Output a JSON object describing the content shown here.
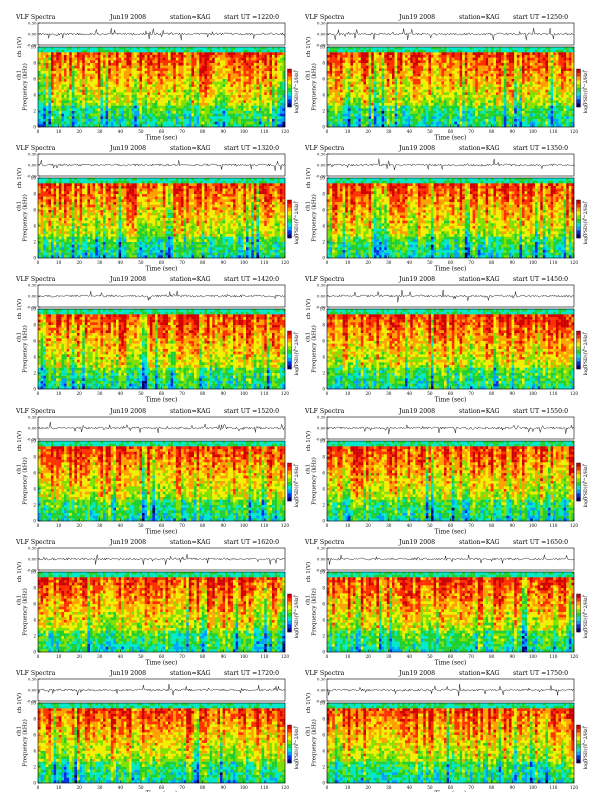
{
  "chart_data": [
    {
      "type": "heatmap",
      "title_left": "VLF Spectra",
      "date": "Jun19 2008",
      "station": "station=KAG",
      "start_ut": "start UT =1220:0",
      "xlabel": "Time (sec)",
      "ylabel_top": "ch 1(V)",
      "ylabel_main": "Frequency (kHz)",
      "channel": "ch1",
      "colorbar_label": "log(PSD)(V^2/Hz)",
      "xlim": [
        0,
        120
      ],
      "ylim": [
        0,
        10
      ],
      "top_ylim": [
        -0.3,
        0.3
      ],
      "x_ticks": [
        "0",
        "10",
        "20",
        "30",
        "40",
        "50",
        "60",
        "70",
        "80",
        "90",
        "100",
        "110",
        "120"
      ],
      "y_ticks": [
        "0",
        "2",
        "4",
        "6",
        "8",
        "10"
      ],
      "top_ticks": [
        "0.30",
        "0.00",
        "-0.30"
      ],
      "colorbar_ticks": [
        "-5",
        "-6",
        "-7"
      ]
    },
    {
      "type": "heatmap",
      "title_left": "VLF Spectra",
      "date": "Jun19 2008",
      "station": "station=KAG",
      "start_ut": "start UT =1250:0",
      "xlabel": "Time (sec)",
      "ylabel_top": "ch 1(V)",
      "ylabel_main": "Frequency (kHz)",
      "channel": "ch1",
      "colorbar_label": "log(PSD)(V^2/Hz)",
      "xlim": [
        0,
        120
      ],
      "ylim": [
        0,
        10
      ],
      "top_ylim": [
        -0.3,
        0.3
      ],
      "x_ticks": [
        "0",
        "10",
        "20",
        "30",
        "40",
        "50",
        "60",
        "70",
        "80",
        "90",
        "100",
        "110",
        "120"
      ],
      "y_ticks": [
        "0",
        "2",
        "4",
        "6",
        "8",
        "10"
      ],
      "top_ticks": [
        "0.30",
        "0.00",
        "-0.30"
      ],
      "colorbar_ticks": [
        "-5",
        "-6",
        "-7"
      ]
    },
    {
      "type": "heatmap",
      "title_left": "VLF Spectra",
      "date": "Jun19 2008",
      "station": "station=KAG",
      "start_ut": "start UT =1320:0",
      "xlabel": "Time (sec)",
      "ylabel_top": "ch 1(V)",
      "ylabel_main": "Frequency (kHz)",
      "channel": "ch1",
      "colorbar_label": "log(PSD)(V^2/Hz)",
      "xlim": [
        0,
        120
      ],
      "ylim": [
        0,
        10
      ],
      "top_ylim": [
        -0.3,
        0.3
      ],
      "x_ticks": [
        "0",
        "10",
        "20",
        "30",
        "40",
        "50",
        "60",
        "70",
        "80",
        "90",
        "100",
        "110",
        "120"
      ],
      "y_ticks": [
        "0",
        "2",
        "4",
        "6",
        "8",
        "10"
      ],
      "top_ticks": [
        "0.30",
        "0.00",
        "-0.30"
      ],
      "colorbar_ticks": [
        "-5",
        "-6",
        "-7"
      ]
    },
    {
      "type": "heatmap",
      "title_left": "VLF Spectra",
      "date": "Jun19 2008",
      "station": "station=KAG",
      "start_ut": "start UT =1350:0",
      "xlabel": "Time (sec)",
      "ylabel_top": "ch 1(V)",
      "ylabel_main": "Frequency (kHz)",
      "channel": "ch1",
      "colorbar_label": "log(PSD)(V^2/Hz)",
      "xlim": [
        0,
        120
      ],
      "ylim": [
        0,
        10
      ],
      "top_ylim": [
        -0.3,
        0.3
      ],
      "x_ticks": [
        "0",
        "10",
        "20",
        "30",
        "40",
        "50",
        "60",
        "70",
        "80",
        "90",
        "100",
        "110",
        "120"
      ],
      "y_ticks": [
        "0",
        "2",
        "4",
        "6",
        "8",
        "10"
      ],
      "top_ticks": [
        "0.30",
        "0.00",
        "-0.30"
      ],
      "colorbar_ticks": [
        "-5",
        "-6",
        "-7"
      ]
    },
    {
      "type": "heatmap",
      "title_left": "VLF Spectra",
      "date": "Jun19 2008",
      "station": "station=KAG",
      "start_ut": "start UT =1420:0",
      "xlabel": "Time (sec)",
      "ylabel_top": "ch 1(V)",
      "ylabel_main": "Frequency (kHz)",
      "channel": "ch1",
      "colorbar_label": "log(PSD)(V^2/Hz)",
      "xlim": [
        0,
        120
      ],
      "ylim": [
        0,
        10
      ],
      "top_ylim": [
        -0.3,
        0.3
      ],
      "x_ticks": [
        "0",
        "10",
        "20",
        "30",
        "40",
        "50",
        "60",
        "70",
        "80",
        "90",
        "100",
        "110",
        "120"
      ],
      "y_ticks": [
        "0",
        "2",
        "4",
        "6",
        "8",
        "10"
      ],
      "top_ticks": [
        "0.30",
        "0.00",
        "-0.30"
      ],
      "colorbar_ticks": [
        "-5",
        "-6",
        "-7"
      ]
    },
    {
      "type": "heatmap",
      "title_left": "VLF Spectra",
      "date": "Jun19 2008",
      "station": "station=KAG",
      "start_ut": "start UT =1450:0",
      "xlabel": "Time (sec)",
      "ylabel_top": "ch 1(V)",
      "ylabel_main": "Frequency (kHz)",
      "channel": "ch1",
      "colorbar_label": "log(PSD)(V^2/Hz)",
      "xlim": [
        0,
        120
      ],
      "ylim": [
        0,
        10
      ],
      "top_ylim": [
        -0.3,
        0.3
      ],
      "x_ticks": [
        "0",
        "10",
        "20",
        "30",
        "40",
        "50",
        "60",
        "70",
        "80",
        "90",
        "100",
        "110",
        "120"
      ],
      "y_ticks": [
        "0",
        "2",
        "4",
        "6",
        "8",
        "10"
      ],
      "top_ticks": [
        "0.30",
        "0.00",
        "-0.30"
      ],
      "colorbar_ticks": [
        "-5",
        "-6",
        "-7"
      ]
    },
    {
      "type": "heatmap",
      "title_left": "VLF Spectra",
      "date": "Jun19 2008",
      "station": "station=KAG",
      "start_ut": "start UT =1520:0",
      "xlabel": "Time (sec)",
      "ylabel_top": "ch 1(V)",
      "ylabel_main": "Frequency (kHz)",
      "channel": "ch1",
      "colorbar_label": "log(PSD)(V^2/Hz)",
      "xlim": [
        0,
        120
      ],
      "ylim": [
        0,
        10
      ],
      "top_ylim": [
        -0.3,
        0.3
      ],
      "x_ticks": [
        "0",
        "10",
        "20",
        "30",
        "40",
        "50",
        "60",
        "70",
        "80",
        "90",
        "100",
        "110",
        "120"
      ],
      "y_ticks": [
        "0",
        "2",
        "4",
        "6",
        "8",
        "10"
      ],
      "top_ticks": [
        "0.30",
        "0.00",
        "-0.30"
      ],
      "colorbar_ticks": [
        "-5",
        "-6",
        "-7"
      ]
    },
    {
      "type": "heatmap",
      "title_left": "VLF Spectra",
      "date": "Jun19 2008",
      "station": "station=KAG",
      "start_ut": "start UT =1550:0",
      "xlabel": "Time (sec)",
      "ylabel_top": "ch 1(V)",
      "ylabel_main": "Frequency (kHz)",
      "channel": "ch1",
      "colorbar_label": "log(PSD)(V^2/Hz)",
      "xlim": [
        0,
        120
      ],
      "ylim": [
        0,
        10
      ],
      "top_ylim": [
        -0.3,
        0.3
      ],
      "x_ticks": [
        "0",
        "10",
        "20",
        "30",
        "40",
        "50",
        "60",
        "70",
        "80",
        "90",
        "100",
        "110",
        "120"
      ],
      "y_ticks": [
        "0",
        "2",
        "4",
        "6",
        "8",
        "10"
      ],
      "top_ticks": [
        "0.30",
        "0.00",
        "-0.30"
      ],
      "colorbar_ticks": [
        "-5",
        "-6",
        "-7"
      ]
    },
    {
      "type": "heatmap",
      "title_left": "VLF Spectra",
      "date": "Jun19 2008",
      "station": "station=KAG",
      "start_ut": "start UT =1620:0",
      "xlabel": "Time (sec)",
      "ylabel_top": "ch 1(V)",
      "ylabel_main": "Frequency (kHz)",
      "channel": "ch1",
      "colorbar_label": "log(PSD)(V^2/Hz)",
      "xlim": [
        0,
        120
      ],
      "ylim": [
        0,
        10
      ],
      "top_ylim": [
        -0.3,
        0.3
      ],
      "x_ticks": [
        "0",
        "10",
        "20",
        "30",
        "40",
        "50",
        "60",
        "70",
        "80",
        "90",
        "100",
        "110",
        "120"
      ],
      "y_ticks": [
        "0",
        "2",
        "4",
        "6",
        "8",
        "10"
      ],
      "top_ticks": [
        "0.30",
        "0.00",
        "-0.30"
      ],
      "colorbar_ticks": [
        "-5",
        "-6",
        "-7"
      ]
    },
    {
      "type": "heatmap",
      "title_left": "VLF Spectra",
      "date": "Jun19 2008",
      "station": "station=KAG",
      "start_ut": "start UT =1650:0",
      "xlabel": "Time (sec)",
      "ylabel_top": "ch 1(V)",
      "ylabel_main": "Frequency (kHz)",
      "channel": "ch1",
      "colorbar_label": "log(PSD)(V^2/Hz)",
      "xlim": [
        0,
        120
      ],
      "ylim": [
        0,
        10
      ],
      "top_ylim": [
        -0.3,
        0.3
      ],
      "x_ticks": [
        "0",
        "10",
        "20",
        "30",
        "40",
        "50",
        "60",
        "70",
        "80",
        "90",
        "100",
        "110",
        "120"
      ],
      "y_ticks": [
        "0",
        "2",
        "4",
        "6",
        "8",
        "10"
      ],
      "top_ticks": [
        "0.30",
        "0.00",
        "-0.30"
      ],
      "colorbar_ticks": [
        "-5",
        "-6",
        "-7"
      ]
    },
    {
      "type": "heatmap",
      "title_left": "VLF Spectra",
      "date": "Jun19 2008",
      "station": "station=KAG",
      "start_ut": "start UT =1720:0",
      "xlabel": "Time (sec)",
      "ylabel_top": "ch 1(V)",
      "ylabel_main": "Frequency (kHz)",
      "channel": "ch1",
      "colorbar_label": "log(PSD)(V^2/Hz)",
      "xlim": [
        0,
        120
      ],
      "ylim": [
        0,
        10
      ],
      "top_ylim": [
        -0.3,
        0.3
      ],
      "x_ticks": [
        "0",
        "10",
        "20",
        "30",
        "40",
        "50",
        "60",
        "70",
        "80",
        "90",
        "100",
        "110",
        "120"
      ],
      "y_ticks": [
        "0",
        "2",
        "4",
        "6",
        "8",
        "10"
      ],
      "top_ticks": [
        "0.30",
        "0.00",
        "-0.30"
      ],
      "colorbar_ticks": [
        "-5",
        "-6",
        "-7"
      ]
    },
    {
      "type": "heatmap",
      "title_left": "VLF Spectra",
      "date": "Jun19 2008",
      "station": "station=KAG",
      "start_ut": "start UT =1750:0",
      "xlabel": "Time (sec)",
      "ylabel_top": "ch 1(V)",
      "ylabel_main": "Frequency (kHz)",
      "channel": "ch1",
      "colorbar_label": "log(PSD)(V^2/Hz)",
      "xlim": [
        0,
        120
      ],
      "ylim": [
        0,
        10
      ],
      "top_ylim": [
        -0.3,
        0.3
      ],
      "x_ticks": [
        "0",
        "10",
        "20",
        "30",
        "40",
        "50",
        "60",
        "70",
        "80",
        "90",
        "100",
        "110",
        "120"
      ],
      "y_ticks": [
        "0",
        "2",
        "4",
        "6",
        "8",
        "10"
      ],
      "top_ticks": [
        "0.30",
        "0.00",
        "-0.30"
      ],
      "colorbar_ticks": [
        "-5",
        "-6",
        "-7"
      ]
    }
  ],
  "colormap": [
    "#000070",
    "#0030e0",
    "#00a0ff",
    "#00e8c8",
    "#20d030",
    "#80e000",
    "#f0f000",
    "#ffa000",
    "#ff3000",
    "#d00000"
  ],
  "colors": {
    "background": "#ffffff",
    "top_band": "#20e8d0",
    "trace": "#000000"
  }
}
